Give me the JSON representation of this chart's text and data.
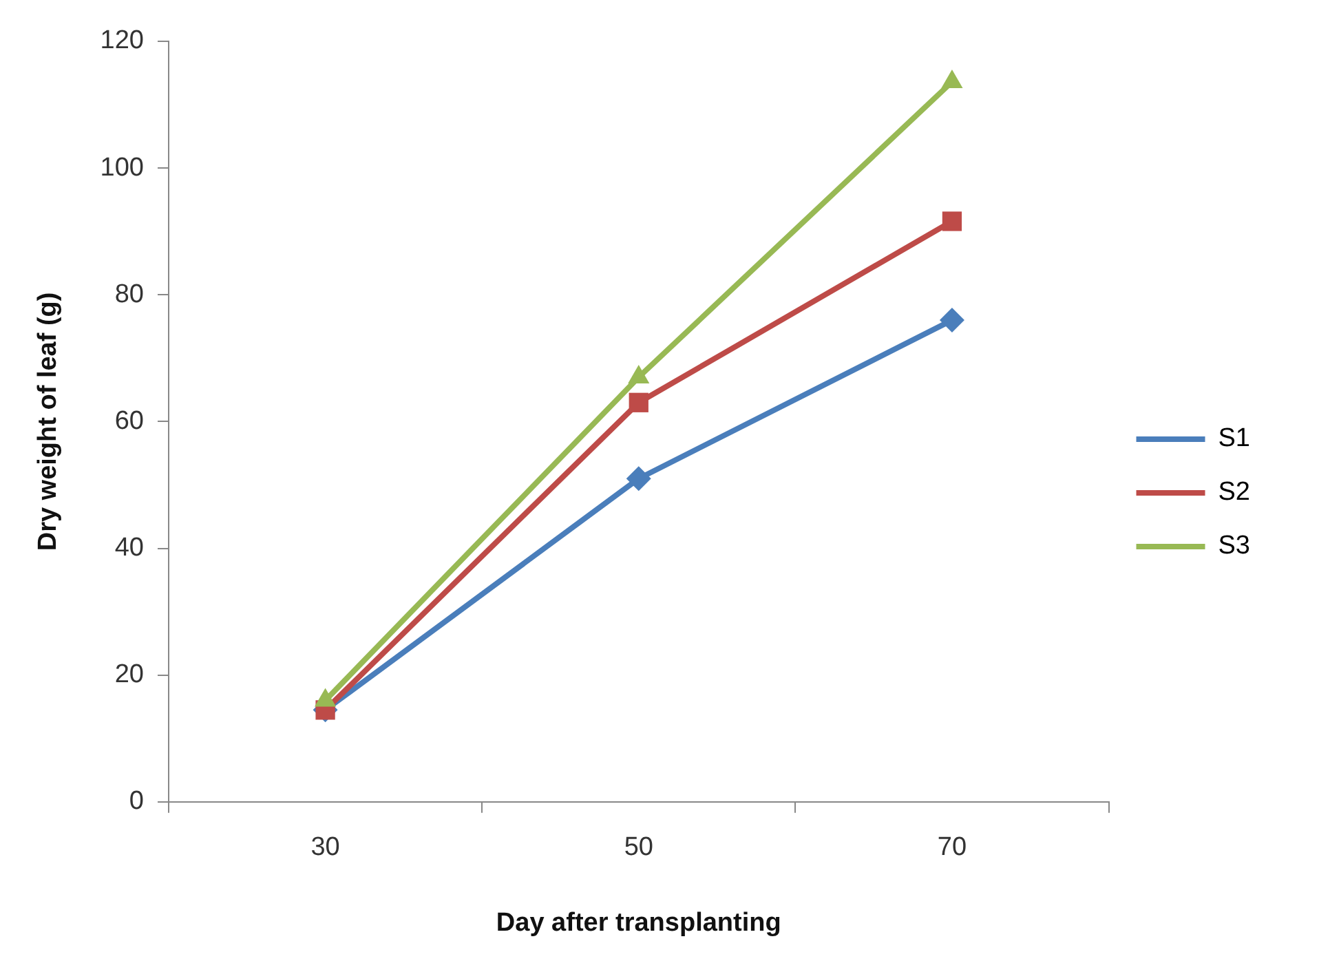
{
  "chart_data": {
    "type": "line",
    "xlabel": "Day after transplanting",
    "ylabel": "Dry weight of leaf (g)",
    "categories": [
      "30",
      "50",
      "70"
    ],
    "series": [
      {
        "name": "S1",
        "color": "#4a7ebb",
        "marker": "diamond",
        "values": [
          14.5,
          51,
          76
        ]
      },
      {
        "name": "S2",
        "color": "#be4b48",
        "marker": "square",
        "values": [
          14.5,
          63,
          91.6
        ]
      },
      {
        "name": "S3",
        "color": "#98b954",
        "marker": "triangle",
        "values": [
          16,
          67,
          113.6
        ]
      }
    ],
    "ylim": [
      0,
      120
    ],
    "yticks": [
      0,
      20,
      40,
      60,
      80,
      100,
      120
    ],
    "grid": false,
    "legend": "right"
  }
}
